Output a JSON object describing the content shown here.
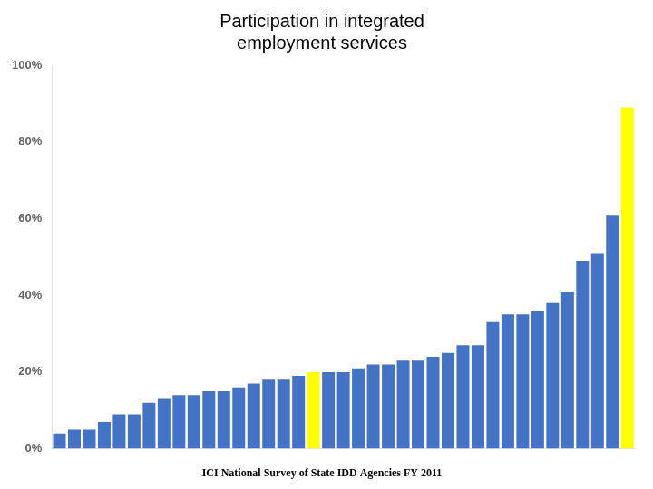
{
  "chart_data": {
    "type": "bar",
    "title": "Participation in integrated\nemployment services",
    "subtitle": "ICI National Survey of State IDD Agencies FY 2011",
    "categories": [
      null,
      null,
      null,
      null,
      null,
      null,
      null,
      null,
      null,
      null,
      null,
      null,
      null,
      null,
      null,
      null,
      null,
      null,
      null,
      null,
      null,
      null,
      null,
      null,
      null,
      null,
      null,
      null,
      null,
      null,
      null,
      null,
      null,
      null,
      null,
      null,
      null,
      null,
      null
    ],
    "values": [
      4,
      5,
      5,
      7,
      9,
      9,
      12,
      13,
      14,
      14,
      15,
      15,
      16,
      17,
      18,
      18,
      19,
      20,
      20,
      20,
      21,
      22,
      22,
      23,
      23,
      24,
      25,
      27,
      27,
      33,
      35,
      35,
      36,
      38,
      41,
      49,
      51,
      61,
      89
    ],
    "colors": [
      "#4472C4",
      "#4472C4",
      "#4472C4",
      "#4472C4",
      "#4472C4",
      "#4472C4",
      "#4472C4",
      "#4472C4",
      "#4472C4",
      "#4472C4",
      "#4472C4",
      "#4472C4",
      "#4472C4",
      "#4472C4",
      "#4472C4",
      "#4472C4",
      "#4472C4",
      "#FFFF00",
      "#4472C4",
      "#4472C4",
      "#4472C4",
      "#4472C4",
      "#4472C4",
      "#4472C4",
      "#4472C4",
      "#4472C4",
      "#4472C4",
      "#4472C4",
      "#4472C4",
      "#4472C4",
      "#4472C4",
      "#4472C4",
      "#4472C4",
      "#4472C4",
      "#4472C4",
      "#4472C4",
      "#4472C4",
      "#4472C4",
      "#FFFF00"
    ],
    "ylim": [
      0,
      100
    ],
    "yticks": [
      {
        "value": 0,
        "label": "0%"
      },
      {
        "value": 20,
        "label": "20%"
      },
      {
        "value": 40,
        "label": "40%"
      },
      {
        "value": 60,
        "label": "60%"
      },
      {
        "value": 80,
        "label": "80%"
      },
      {
        "value": 100,
        "label": "100%"
      }
    ],
    "grid": false,
    "tick_labels": "y"
  }
}
